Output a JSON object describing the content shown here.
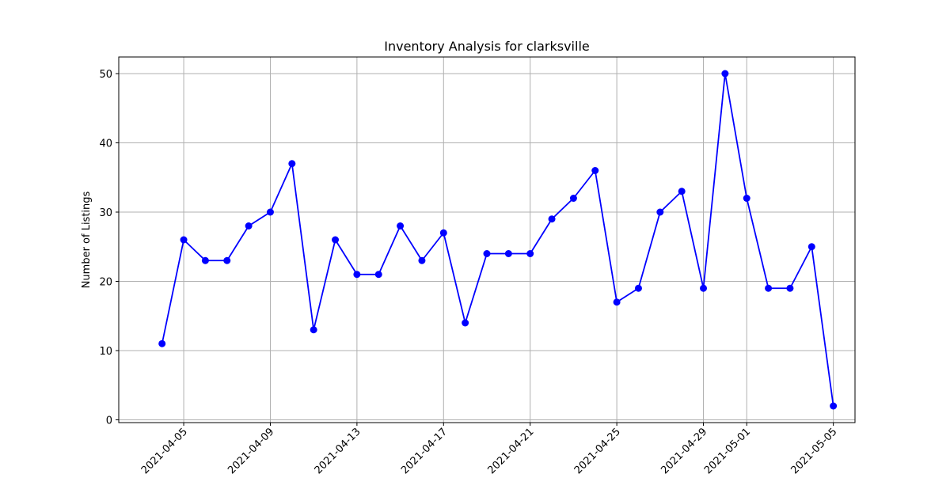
{
  "chart_data": {
    "type": "line",
    "title": "Inventory Analysis for clarksville",
    "xlabel": "",
    "ylabel": "Number of Listings",
    "x_tick_labels": [
      "2021-04-05",
      "2021-04-09",
      "2021-04-13",
      "2021-04-17",
      "2021-04-21",
      "2021-04-25",
      "2021-04-29",
      "2021-05-01",
      "2021-05-05"
    ],
    "y_tick_labels": [
      "0",
      "10",
      "20",
      "30",
      "40",
      "50"
    ],
    "y_ticks": [
      0,
      10,
      20,
      30,
      40,
      50
    ],
    "ylim": [
      -0.4,
      52.4
    ],
    "xlim": [
      "2021-04-02",
      "2021-05-06"
    ],
    "grid": true,
    "colors": {
      "line": "#0000ff",
      "marker": "#0000ff",
      "grid": "#b0b0b0"
    },
    "series": [
      {
        "x": [
          "2021-04-04",
          "2021-04-05",
          "2021-04-06",
          "2021-04-07",
          "2021-04-08",
          "2021-04-09",
          "2021-04-10",
          "2021-04-11",
          "2021-04-12",
          "2021-04-13",
          "2021-04-14",
          "2021-04-15",
          "2021-04-16",
          "2021-04-17",
          "2021-04-18",
          "2021-04-19",
          "2021-04-20",
          "2021-04-21",
          "2021-04-22",
          "2021-04-23",
          "2021-04-24",
          "2021-04-25",
          "2021-04-26",
          "2021-04-27",
          "2021-04-28",
          "2021-04-29",
          "2021-04-30",
          "2021-05-01",
          "2021-05-02",
          "2021-05-03",
          "2021-05-04",
          "2021-05-05"
        ],
        "values": [
          11,
          26,
          23,
          23,
          28,
          30,
          37,
          13,
          26,
          21,
          21,
          28,
          23,
          27,
          14,
          24,
          24,
          24,
          29,
          32,
          36,
          17,
          19,
          30,
          33,
          19,
          50,
          32,
          19,
          19,
          25,
          2
        ]
      }
    ]
  }
}
